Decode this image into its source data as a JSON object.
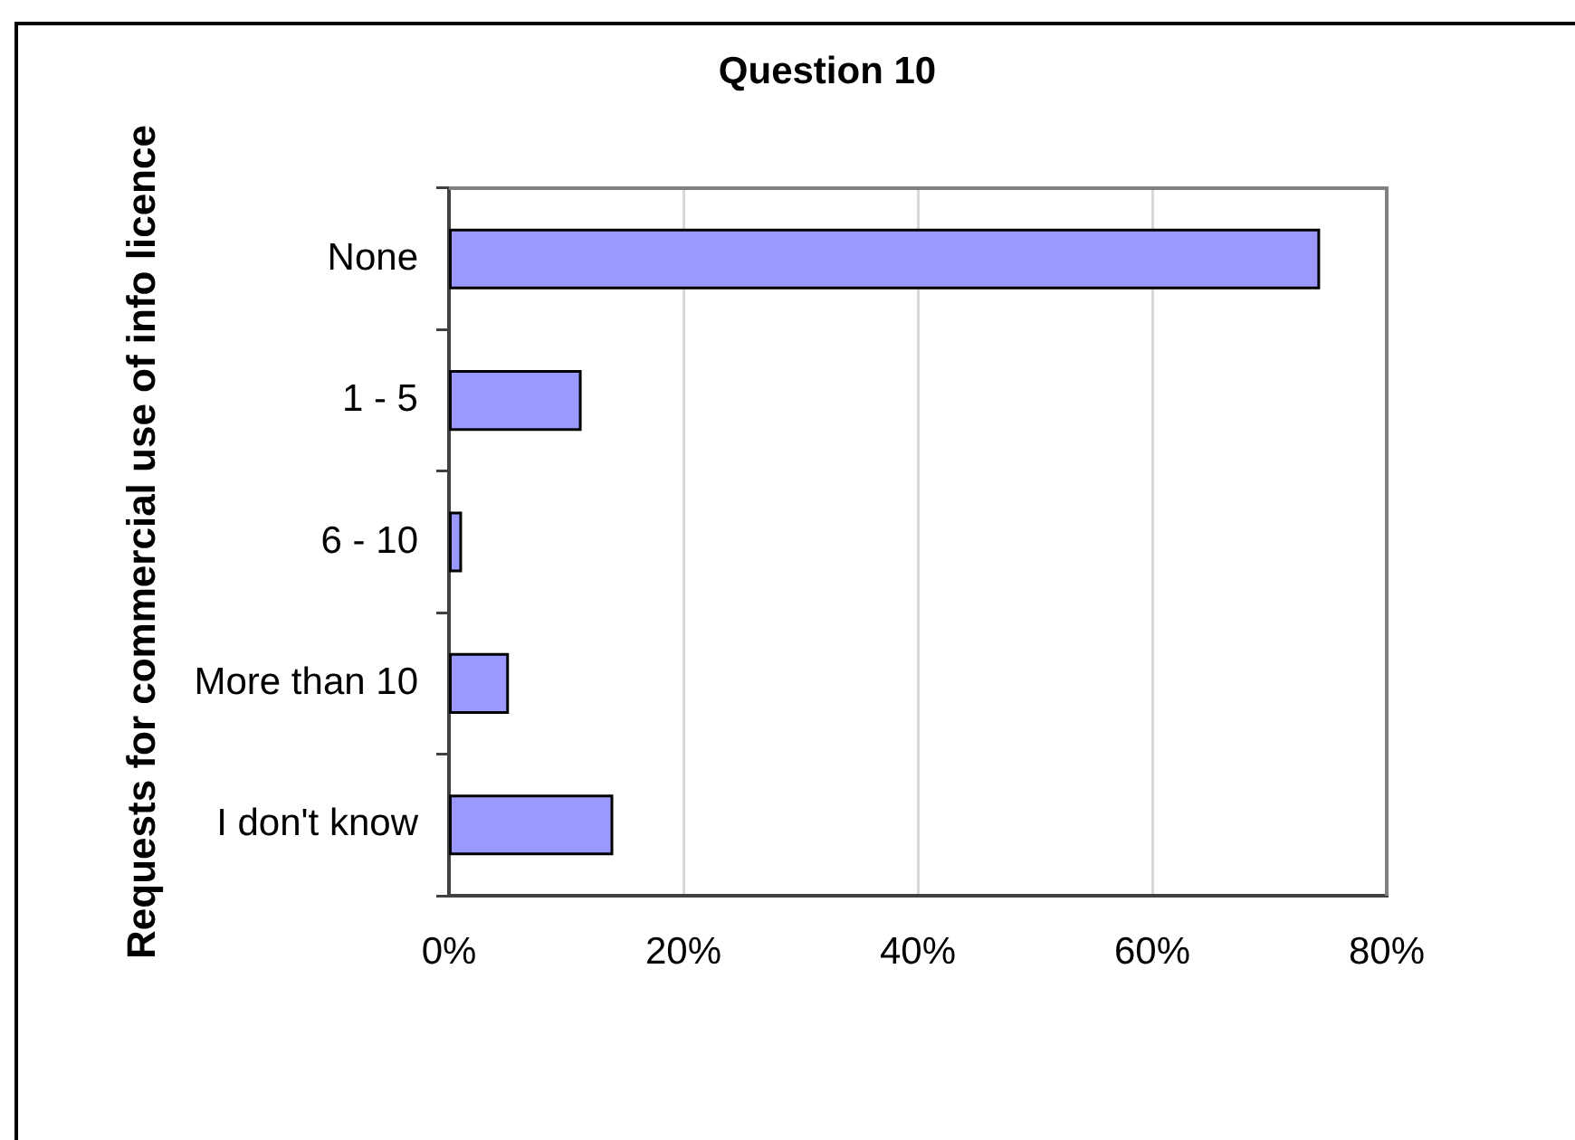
{
  "chart_data": {
    "type": "bar",
    "orientation": "horizontal",
    "title": "Question 10",
    "ylabel": "Requests for commercial use of info licence",
    "categories": [
      "None",
      "1 - 5",
      "6 - 10",
      "More than 10",
      "I don't know"
    ],
    "values": [
      74.2,
      11.2,
      1.0,
      5.0,
      13.9
    ],
    "color": "#9999ff",
    "xlim": [
      0,
      80
    ],
    "xticks": [
      {
        "value": 0,
        "label": "0%"
      },
      {
        "value": 20,
        "label": "20%"
      },
      {
        "value": 40,
        "label": "40%"
      },
      {
        "value": 60,
        "label": "60%"
      },
      {
        "value": 80,
        "label": "80%"
      }
    ],
    "grid": "x"
  }
}
